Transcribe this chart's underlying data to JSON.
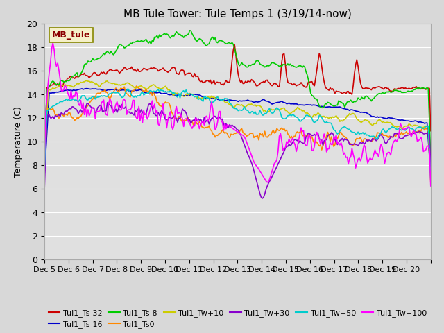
{
  "title": "MB Tule Tower: Tule Temps 1 (3/19/14-now)",
  "ylabel": "Temperature (C)",
  "ylim": [
    0,
    20
  ],
  "yticks": [
    0,
    2,
    4,
    6,
    8,
    10,
    12,
    14,
    16,
    18,
    20
  ],
  "xtick_positions": [
    0,
    1,
    2,
    3,
    4,
    5,
    6,
    7,
    8,
    9,
    10,
    11,
    12,
    13,
    14,
    15,
    16
  ],
  "xtick_labels": [
    "Dec 5",
    "Dec 6",
    "Dec 7",
    "Dec 8",
    "Dec 9",
    "Dec 10",
    "Dec 11",
    "Dec 12",
    "Dec 13",
    "Dec 14",
    "Dec 15",
    "Dec 16",
    "Dec 17",
    "Dec 18",
    "Dec 19",
    "Dec 20",
    ""
  ],
  "bg_color": "#d8d8d8",
  "plot_bg_color": "#e0e0e0",
  "legend_label": "MB_tule",
  "series_names": [
    "Tul1_Ts-32",
    "Tul1_Ts-16",
    "Tul1_Ts-8",
    "Tul1_Ts0",
    "Tul1_Tw+10",
    "Tul1_Tw+30",
    "Tul1_Tw+50",
    "Tul1_Tw+100"
  ],
  "series_colors": [
    "#cc0000",
    "#0000cc",
    "#00cc00",
    "#ff8800",
    "#cccc00",
    "#8800cc",
    "#00cccc",
    "#ff00ff"
  ],
  "series_lw": [
    1.2,
    1.2,
    1.2,
    1.2,
    1.2,
    1.2,
    1.2,
    1.2
  ],
  "num_points": 320,
  "seed": 42
}
